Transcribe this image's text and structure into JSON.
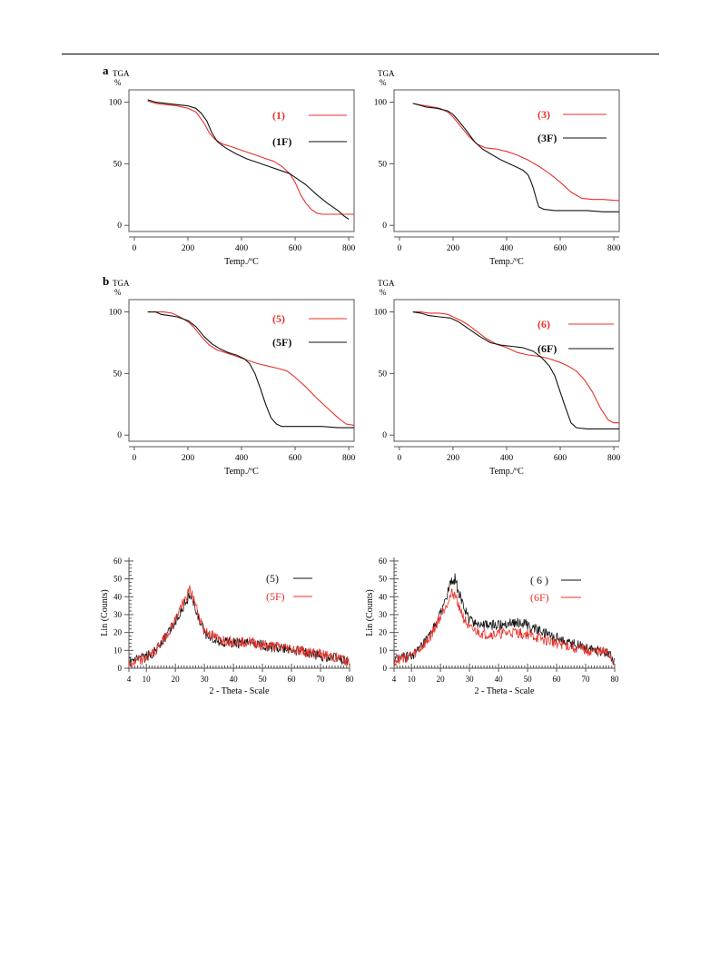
{
  "colors": {
    "red": "#e8302a",
    "black": "#111111",
    "axis": "#555555"
  },
  "panel_letters": {
    "a": "a",
    "b": "b"
  },
  "chart_data": [
    {
      "type": "line",
      "ylabel_top": "TGA",
      "ylabel_unit": "%",
      "xlabel": "Temp./ºC",
      "xlim": [
        -20,
        820
      ],
      "ylim": [
        -5,
        110
      ],
      "xticks": [
        "0",
        "200",
        "400",
        "600",
        "800"
      ],
      "yticks": [
        "0",
        "50",
        "100"
      ],
      "series": [
        {
          "name": "(1)",
          "color": "#e8302a",
          "x": [
            50,
            80,
            120,
            160,
            200,
            230,
            260,
            280,
            300,
            330,
            360,
            400,
            440,
            480,
            520,
            550,
            580,
            600,
            620,
            640,
            660,
            680,
            700,
            760,
            820
          ],
          "y": [
            101,
            99,
            98,
            97,
            95,
            92,
            83,
            75,
            70,
            66,
            64,
            61,
            58,
            55,
            52,
            48,
            42,
            35,
            25,
            18,
            13,
            10,
            9,
            9,
            9
          ]
        },
        {
          "name": "(1F)",
          "color": "#111111",
          "x": [
            50,
            80,
            120,
            160,
            200,
            230,
            250,
            270,
            290,
            310,
            340,
            380,
            420,
            460,
            500,
            540,
            580,
            600,
            640,
            680,
            720,
            760,
            780,
            800
          ],
          "y": [
            102,
            100,
            99,
            98,
            97,
            95,
            91,
            85,
            75,
            68,
            63,
            58,
            54,
            51,
            48,
            45,
            42,
            39,
            33,
            25,
            18,
            12,
            8,
            5
          ]
        }
      ]
    },
    {
      "type": "line",
      "ylabel_top": "TGA",
      "ylabel_unit": "%",
      "xlabel": "Temp./ºC",
      "xlim": [
        -20,
        820
      ],
      "ylim": [
        -5,
        110
      ],
      "xticks": [
        "0",
        "200",
        "400",
        "600",
        "800"
      ],
      "yticks": [
        "0",
        "50",
        "100"
      ],
      "series": [
        {
          "name": "(3)",
          "color": "#e8302a",
          "x": [
            50,
            70,
            100,
            150,
            180,
            200,
            230,
            260,
            290,
            320,
            360,
            400,
            440,
            480,
            520,
            560,
            600,
            640,
            680,
            720,
            760,
            820
          ],
          "y": [
            99,
            98,
            97,
            95,
            92,
            88,
            80,
            72,
            66,
            63,
            62,
            60,
            57,
            53,
            48,
            42,
            35,
            27,
            22,
            21,
            21,
            20
          ]
        },
        {
          "name": "(3F)",
          "color": "#111111",
          "x": [
            50,
            70,
            100,
            140,
            180,
            200,
            220,
            250,
            280,
            310,
            340,
            380,
            420,
            460,
            480,
            490,
            500,
            510,
            520,
            540,
            580,
            640,
            700,
            760,
            820
          ],
          "y": [
            99,
            98,
            96,
            95,
            93,
            90,
            85,
            77,
            68,
            62,
            58,
            53,
            49,
            45,
            41,
            36,
            30,
            22,
            15,
            13,
            12,
            12,
            12,
            11,
            11
          ]
        }
      ]
    },
    {
      "type": "line",
      "ylabel_top": "TGA",
      "ylabel_unit": "%",
      "xlabel": "Temp./ºC",
      "xlim": [
        -20,
        820
      ],
      "ylim": [
        -5,
        110
      ],
      "xticks": [
        "0",
        "200",
        "400",
        "600",
        "800"
      ],
      "yticks": [
        "0",
        "50",
        "100"
      ],
      "series": [
        {
          "name": "(5)",
          "color": "#e8302a",
          "x": [
            50,
            80,
            110,
            140,
            170,
            200,
            220,
            250,
            280,
            310,
            340,
            380,
            420,
            460,
            500,
            540,
            570,
            600,
            640,
            680,
            720,
            760,
            790,
            820
          ],
          "y": [
            100,
            100,
            100,
            99,
            96,
            92,
            88,
            80,
            73,
            69,
            67,
            64,
            61,
            58,
            56,
            54,
            52,
            47,
            39,
            30,
            22,
            14,
            9,
            8
          ]
        },
        {
          "name": "(5F)",
          "color": "#111111",
          "x": [
            50,
            80,
            100,
            130,
            160,
            200,
            230,
            260,
            290,
            320,
            350,
            380,
            410,
            430,
            450,
            470,
            490,
            510,
            530,
            550,
            600,
            700,
            760,
            820
          ],
          "y": [
            100,
            100,
            98,
            97,
            96,
            93,
            88,
            80,
            74,
            70,
            67,
            65,
            62,
            58,
            50,
            38,
            25,
            14,
            9,
            7,
            7,
            7,
            6,
            6
          ]
        }
      ]
    },
    {
      "type": "line",
      "ylabel_top": "TGA",
      "ylabel_unit": "%",
      "xlabel": "Temp./ºC",
      "xlim": [
        -20,
        820
      ],
      "ylim": [
        -5,
        110
      ],
      "xticks": [
        "0",
        "200",
        "400",
        "600",
        "800"
      ],
      "yticks": [
        "0",
        "50",
        "100"
      ],
      "series": [
        {
          "name": "(6)",
          "color": "#e8302a",
          "x": [
            50,
            80,
            110,
            150,
            180,
            200,
            230,
            260,
            290,
            320,
            360,
            400,
            440,
            480,
            520,
            560,
            600,
            630,
            660,
            690,
            720,
            750,
            780,
            800,
            820
          ],
          "y": [
            100,
            100,
            99,
            99,
            98,
            96,
            93,
            89,
            84,
            79,
            74,
            71,
            67,
            65,
            64,
            62,
            59,
            56,
            52,
            45,
            35,
            22,
            12,
            10,
            10
          ]
        },
        {
          "name": "(6F)",
          "color": "#111111",
          "x": [
            50,
            80,
            110,
            150,
            190,
            220,
            260,
            300,
            340,
            380,
            420,
            460,
            500,
            530,
            560,
            580,
            600,
            620,
            640,
            660,
            700,
            760,
            820
          ],
          "y": [
            100,
            99,
            97,
            96,
            95,
            92,
            86,
            80,
            75,
            73,
            72,
            71,
            68,
            63,
            56,
            48,
            35,
            22,
            10,
            6,
            5,
            5,
            5
          ]
        }
      ]
    },
    {
      "type": "line",
      "ylabel": "Lin (Counts)",
      "xlabel": "2 - Theta - Scale",
      "xlim": [
        4,
        80
      ],
      "ylim": [
        0,
        62
      ],
      "xticks": [
        "4",
        "10",
        "20",
        "30",
        "40",
        "50",
        "60",
        "70",
        "80"
      ],
      "yticks": [
        "0",
        "10",
        "20",
        "30",
        "40",
        "50",
        "60"
      ],
      "series": [
        {
          "name": "(5)",
          "color": "#111111",
          "x": [
            4,
            8,
            12,
            16,
            20,
            22,
            24,
            25,
            26,
            28,
            30,
            35,
            40,
            45,
            50,
            55,
            60,
            65,
            70,
            75,
            80
          ],
          "y": [
            3,
            5,
            8,
            16,
            26,
            33,
            38,
            42,
            38,
            28,
            20,
            15,
            14,
            14,
            13,
            11,
            10,
            9,
            7,
            6,
            4
          ]
        },
        {
          "name": "(5F)",
          "color": "#e8302a",
          "x": [
            4,
            8,
            12,
            16,
            20,
            22,
            24,
            25,
            26,
            28,
            30,
            35,
            40,
            45,
            50,
            55,
            60,
            65,
            70,
            75,
            80
          ],
          "y": [
            2,
            4,
            8,
            16,
            27,
            35,
            40,
            44,
            40,
            30,
            21,
            16,
            15,
            15,
            13,
            12,
            11,
            9,
            8,
            6,
            4
          ]
        }
      ]
    },
    {
      "type": "line",
      "ylabel": "Lin (Counts)",
      "xlabel": "2 - Theta - Scale",
      "xlim": [
        4,
        80
      ],
      "ylim": [
        0,
        62
      ],
      "xticks": [
        "4",
        "10",
        "20",
        "30",
        "40",
        "50",
        "60",
        "70",
        "80"
      ],
      "yticks": [
        "0",
        "10",
        "20",
        "30",
        "40",
        "50",
        "60"
      ],
      "series": [
        {
          "name": "( 6 )",
          "color": "#111111",
          "x": [
            4,
            8,
            12,
            16,
            20,
            22,
            24,
            25,
            26,
            28,
            30,
            35,
            40,
            45,
            50,
            55,
            60,
            65,
            70,
            75,
            78,
            80
          ],
          "y": [
            5,
            6,
            9,
            17,
            30,
            40,
            49,
            50,
            44,
            34,
            27,
            24,
            24,
            26,
            24,
            20,
            17,
            14,
            12,
            10,
            9,
            2
          ]
        },
        {
          "name": "(6F)",
          "color": "#e8302a",
          "x": [
            4,
            8,
            12,
            16,
            20,
            22,
            24,
            25,
            26,
            28,
            30,
            35,
            40,
            45,
            50,
            55,
            60,
            65,
            70,
            75,
            78,
            80
          ],
          "y": [
            4,
            6,
            9,
            16,
            29,
            36,
            42,
            41,
            37,
            28,
            22,
            19,
            19,
            20,
            19,
            16,
            14,
            12,
            10,
            9,
            8,
            2
          ]
        }
      ]
    }
  ]
}
